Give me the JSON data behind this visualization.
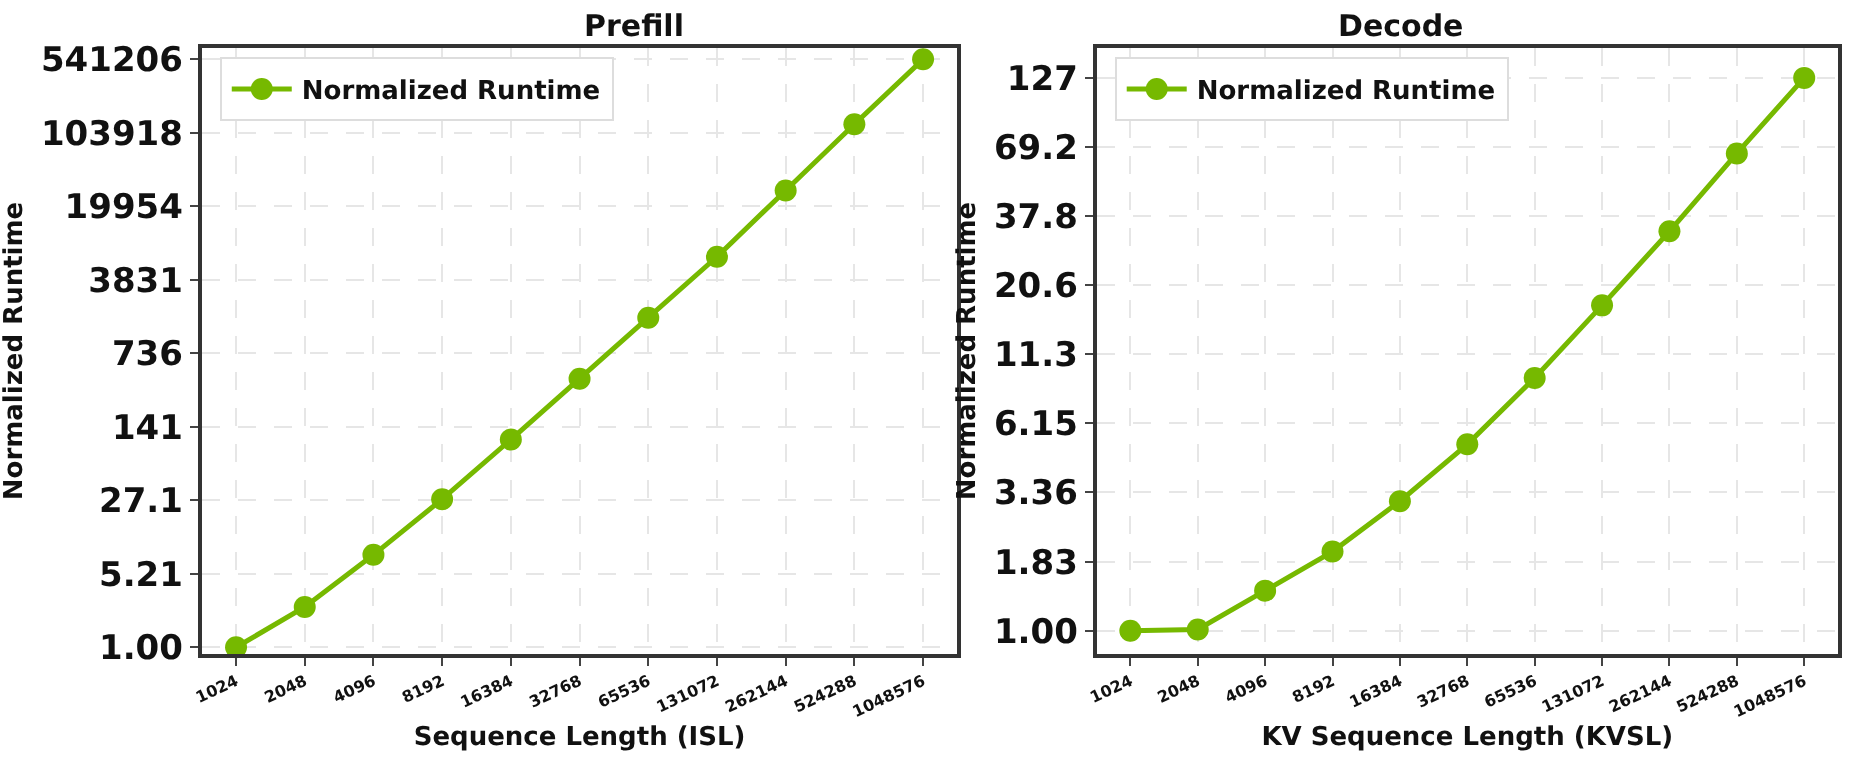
{
  "chart_data": [
    {
      "type": "line",
      "title": "Prefill",
      "xlabel": "Sequence Length (ISL)",
      "ylabel": "Normalized Runtime",
      "categories": [
        "1024",
        "2048",
        "4096",
        "8192",
        "16384",
        "32768",
        "65536",
        "131072",
        "262144",
        "524288",
        "1048576"
      ],
      "series": [
        {
          "name": "Normalized Runtime",
          "color": "#76b900",
          "values": [
            1.0,
            2.47,
            7.97,
            27.8,
            106,
            416,
            1636,
            6430,
            28500,
            126000,
            541206
          ]
        }
      ],
      "log": "y",
      "ylim": [
        0.86,
        698000
      ],
      "yticks": [
        {
          "value": 1,
          "label": "1.00"
        },
        5.21,
        27.1,
        141,
        736,
        3831,
        19954,
        103918,
        541206
      ],
      "grid": true,
      "legend": "top left",
      "marker": "circle",
      "line_style": "solid"
    },
    {
      "type": "line",
      "title": "Decode",
      "xlabel": "KV Sequence Length (KVSL)",
      "ylabel": "Normalized Runtime",
      "categories": [
        "1024",
        "2048",
        "4096",
        "8192",
        "16384",
        "32768",
        "65536",
        "131072",
        "262144",
        "524288",
        "1048576"
      ],
      "series": [
        {
          "name": "Normalized Runtime",
          "color": "#76b900",
          "values": [
            1.0,
            1.01,
            1.42,
            2.0,
            3.11,
            5.12,
            9.16,
            17.3,
            33.1,
            65.5,
            127
          ]
        }
      ],
      "log": "y",
      "ylim": [
        0.815,
        165
      ],
      "yticks": [
        {
          "value": 1,
          "label": "1.00"
        },
        1.83,
        3.36,
        6.15,
        11.3,
        20.6,
        37.8,
        69.2,
        127
      ],
      "grid": true,
      "legend": "top left",
      "marker": "circle",
      "line_style": "solid"
    }
  ]
}
